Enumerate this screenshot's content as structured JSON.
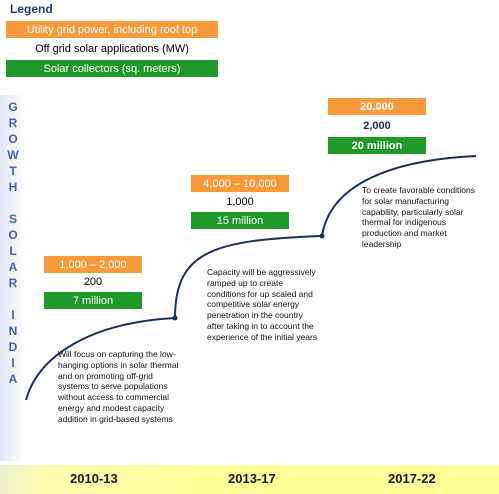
{
  "legend": {
    "title": "Legend",
    "items": [
      {
        "label": "Utility grid power, including roof top",
        "color": "#f79a3c"
      },
      {
        "label": "Off grid solar applications (MW)",
        "color": "#ffffff"
      },
      {
        "label": "Solar collectors (sq. meters)",
        "color": "#1f9a2a"
      }
    ]
  },
  "side_title": [
    "G",
    "R",
    "O",
    "W",
    "T",
    "H",
    "",
    "S",
    "O",
    "L",
    "A",
    "R",
    "",
    "I",
    "N",
    "D",
    "I",
    "A"
  ],
  "phases": [
    {
      "period": "2010-13",
      "grid": "1,000 – 2,000",
      "offgrid": "200",
      "collectors": "7 million",
      "description": [
        "Will focus on capturing the low-",
        "hanging options in solar thermal",
        "and on promoting off-grid",
        "systems to serve populations",
        "without access to commercial",
        "energy and modest capacity",
        "addition in grid-based systems"
      ]
    },
    {
      "period": "2013-17",
      "grid": "4,000 – 10,000",
      "offgrid": "1,000",
      "collectors": "15 million",
      "description": [
        "Capacity will be aggressively",
        "ramped up to create",
        "conditions for up scaled and",
        "competitive solar energy",
        "penetration in the country",
        "after taking in to account the",
        "experience of the initial years"
      ]
    },
    {
      "period": "2017-22",
      "grid": "20,000",
      "offgrid": "2,000",
      "collectors": "20 million",
      "description": [
        "To create favorable conditions",
        "for solar manufacturing",
        "capability, particularly solar",
        "thermal for indigenous",
        "production and market",
        "leadership"
      ]
    }
  ],
  "colors": {
    "curve": "#1a2e5c",
    "accent_blue": "#3a63b5",
    "footer": "#ffff9a"
  }
}
